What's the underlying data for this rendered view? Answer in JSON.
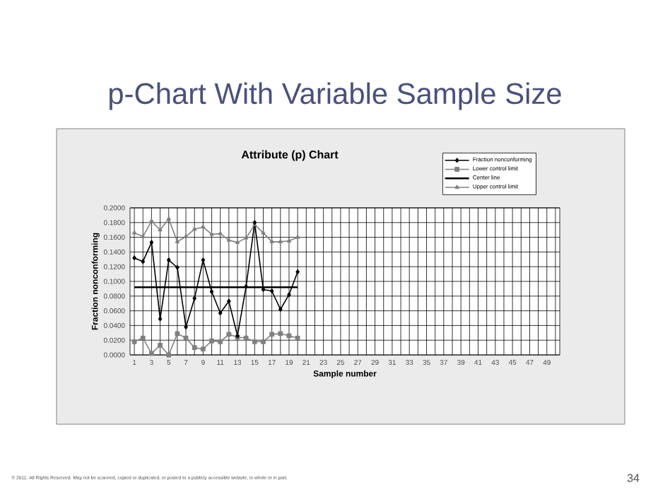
{
  "chart_data": {
    "type": "line",
    "title": "p-Chart With Variable Sample Size",
    "subtitle": "Attribute (p) Chart",
    "xlabel": "Sample number",
    "ylabel": "Fraction nonconforming",
    "x": [
      1,
      2,
      3,
      4,
      5,
      6,
      7,
      8,
      9,
      10,
      11,
      12,
      13,
      14,
      15,
      16,
      17,
      18,
      19,
      20
    ],
    "series": [
      {
        "name": "Fraction nonconforming",
        "color": "#000000",
        "marker": "diamond",
        "values": [
          0.132,
          0.127,
          0.153,
          0.049,
          0.129,
          0.119,
          0.038,
          0.077,
          0.129,
          0.086,
          0.057,
          0.073,
          0.026,
          0.093,
          0.18,
          0.089,
          0.087,
          0.062,
          0.082,
          0.113
        ]
      },
      {
        "name": "Lower control limit",
        "color": "#808080",
        "marker": "square",
        "values": [
          0.018,
          0.023,
          0.002,
          0.013,
          0.0,
          0.029,
          0.023,
          0.01,
          0.008,
          0.019,
          0.018,
          0.028,
          0.024,
          0.023,
          0.018,
          0.018,
          0.028,
          0.029,
          0.026,
          0.023
        ]
      },
      {
        "name": "Center line",
        "color": "#000000",
        "marker": "none",
        "values": [
          0.092,
          0.092,
          0.092,
          0.092,
          0.092,
          0.092,
          0.092,
          0.092,
          0.092,
          0.092,
          0.092,
          0.092,
          0.092,
          0.092,
          0.092,
          0.092,
          0.092,
          0.092,
          0.092,
          0.092
        ]
      },
      {
        "name": "Upper control limit",
        "color": "#808080",
        "marker": "triangle",
        "values": [
          0.166,
          0.161,
          0.182,
          0.17,
          0.185,
          0.154,
          0.161,
          0.171,
          0.174,
          0.164,
          0.165,
          0.156,
          0.153,
          0.159,
          0.177,
          0.166,
          0.154,
          0.154,
          0.155,
          0.16
        ]
      }
    ],
    "xlim": [
      0.5,
      50.5
    ],
    "xticks": [
      1,
      {
        "value": 2,
        "label": null
      },
      3,
      {
        "value": 4,
        "label": null
      },
      5,
      {
        "value": 6,
        "label": null
      },
      7,
      {
        "value": 8,
        "label": null
      },
      9,
      {
        "value": 10,
        "label": null
      },
      11,
      {
        "value": 12,
        "label": null
      },
      13,
      {
        "value": 14,
        "label": null
      },
      15,
      {
        "value": 16,
        "label": null
      },
      17,
      {
        "value": 18,
        "label": null
      },
      19,
      {
        "value": 20,
        "label": null
      },
      21,
      {
        "value": 22,
        "label": null
      },
      23,
      {
        "value": 24,
        "label": null
      },
      25,
      {
        "value": 26,
        "label": null
      },
      27,
      {
        "value": 28,
        "label": null
      },
      29,
      {
        "value": 30,
        "label": null
      },
      31,
      {
        "value": 32,
        "label": null
      },
      33,
      {
        "value": 34,
        "label": null
      },
      35,
      {
        "value": 36,
        "label": null
      },
      37,
      {
        "value": 38,
        "label": null
      },
      39,
      {
        "value": 40,
        "label": null
      },
      41,
      {
        "value": 42,
        "label": null
      },
      43,
      {
        "value": 44,
        "label": null
      },
      45,
      {
        "value": 46,
        "label": null
      },
      47,
      {
        "value": 48,
        "label": null
      },
      49,
      {
        "value": 50,
        "label": null
      }
    ],
    "ylim": [
      0,
      0.2
    ],
    "yticks": [
      {
        "value": 0,
        "label": "0.0000"
      },
      {
        "value": 0.02,
        "label": "0.0200"
      },
      {
        "value": 0.04,
        "label": "0.0400"
      },
      {
        "value": 0.06,
        "label": "0.0600"
      },
      {
        "value": 0.08,
        "label": "0.0800"
      },
      {
        "value": 0.1,
        "label": "0.1000"
      },
      {
        "value": 0.12,
        "label": "0.1200"
      },
      {
        "value": 0.14,
        "label": "0.1400"
      },
      {
        "value": 0.16,
        "label": "0.1600"
      },
      {
        "value": 0.18,
        "label": "0.1800"
      },
      {
        "value": 0.2,
        "label": "0.2000"
      }
    ],
    "grid": true,
    "legend": "top right",
    "line_style": "solid",
    "annotations": [
      "© 2011. All Rights Reserved. May not be scanned, copied or duplicated, or posted to a publicly accessible website, in whole or in part.",
      "34"
    ]
  }
}
